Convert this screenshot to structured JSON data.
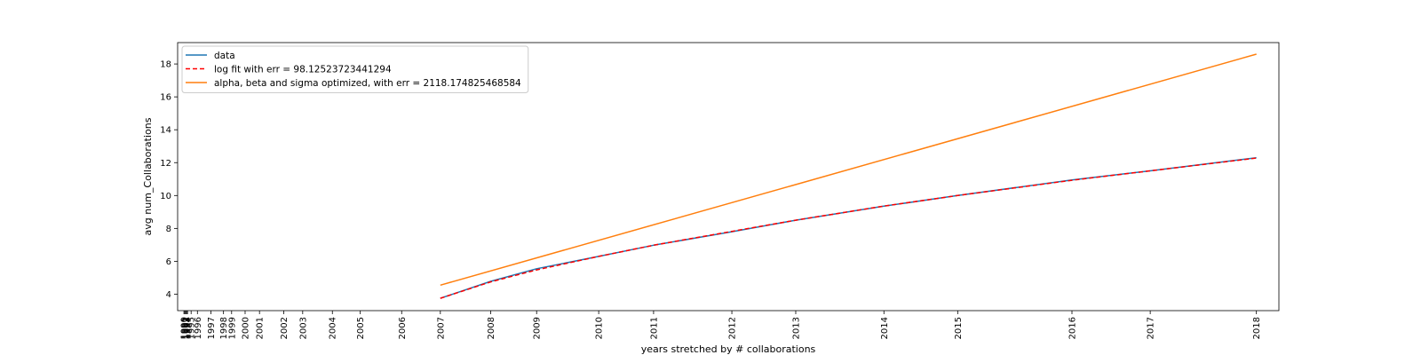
{
  "chart_data": {
    "type": "line",
    "xlabel": "years stretched by # collaborations",
    "ylabel": "avg num_Collaborations",
    "ylim": [
      3.0,
      19.3
    ],
    "y_ticks": [
      4,
      6,
      8,
      10,
      12,
      14,
      16,
      18
    ],
    "xlim": [
      -7,
      1217
    ],
    "x_ticks": [
      {
        "label": "1990",
        "pos": 0
      },
      {
        "label": "1991",
        "pos": 1
      },
      {
        "label": "1992",
        "pos": 2
      },
      {
        "label": "1993",
        "pos": 3
      },
      {
        "label": "1994",
        "pos": 4
      },
      {
        "label": "1995",
        "pos": 8
      },
      {
        "label": "1996",
        "pos": 15
      },
      {
        "label": "1997",
        "pos": 30
      },
      {
        "label": "1998",
        "pos": 44
      },
      {
        "label": "1999",
        "pos": 53
      },
      {
        "label": "2000",
        "pos": 68
      },
      {
        "label": "2001",
        "pos": 84
      },
      {
        "label": "2002",
        "pos": 111
      },
      {
        "label": "2003",
        "pos": 132
      },
      {
        "label": "2004",
        "pos": 165
      },
      {
        "label": "2005",
        "pos": 196
      },
      {
        "label": "2006",
        "pos": 242
      },
      {
        "label": "2007",
        "pos": 285
      },
      {
        "label": "2008",
        "pos": 341
      },
      {
        "label": "2009",
        "pos": 392
      },
      {
        "label": "2010",
        "pos": 461
      },
      {
        "label": "2011",
        "pos": 522
      },
      {
        "label": "2012",
        "pos": 609
      },
      {
        "label": "2013",
        "pos": 680
      },
      {
        "label": "2014",
        "pos": 778
      },
      {
        "label": "2015",
        "pos": 860
      },
      {
        "label": "2016",
        "pos": 987
      },
      {
        "label": "2017",
        "pos": 1074
      },
      {
        "label": "2018",
        "pos": 1192
      }
    ],
    "legend_position": "top-left",
    "series": [
      {
        "name": "data",
        "color": "#1f77b4",
        "style": "solid",
        "points": [
          [
            285,
            3.75
          ],
          [
            341,
            4.78
          ],
          [
            392,
            5.55
          ],
          [
            461,
            6.3
          ],
          [
            522,
            6.98
          ],
          [
            609,
            7.8
          ],
          [
            680,
            8.5
          ],
          [
            778,
            9.35
          ],
          [
            860,
            10.0
          ],
          [
            987,
            10.95
          ],
          [
            1074,
            11.5
          ],
          [
            1192,
            12.3
          ]
        ]
      },
      {
        "name": "log fit with err = 98.12523723441294",
        "color": "#ff0000",
        "style": "dashed",
        "points": [
          [
            285,
            3.75
          ],
          [
            341,
            4.75
          ],
          [
            392,
            5.48
          ],
          [
            461,
            6.3
          ],
          [
            522,
            6.98
          ],
          [
            609,
            7.82
          ],
          [
            680,
            8.5
          ],
          [
            778,
            9.36
          ],
          [
            860,
            10.0
          ],
          [
            987,
            10.93
          ],
          [
            1074,
            11.5
          ],
          [
            1192,
            12.28
          ]
        ]
      },
      {
        "name": "alpha, beta and sigma optimized, with err = 2118.174825468584",
        "color": "#ff7f0e",
        "style": "solid",
        "points": [
          [
            285,
            4.55
          ],
          [
            1192,
            18.6
          ]
        ]
      }
    ]
  }
}
